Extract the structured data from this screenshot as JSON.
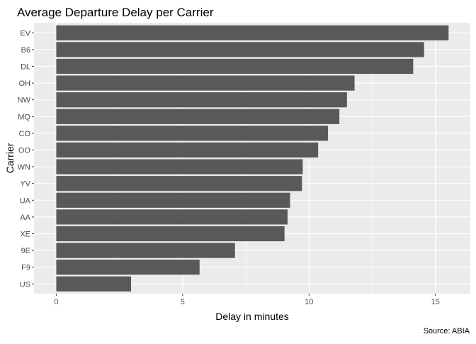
{
  "chart_data": {
    "type": "bar",
    "orientation": "horizontal",
    "title": "Average Departure Delay per Carrier",
    "xlabel": "Delay in minutes",
    "ylabel": "Carrier",
    "caption": "Source: ABIA",
    "categories": [
      "EV",
      "B6",
      "DL",
      "OH",
      "NW",
      "MQ",
      "CO",
      "OO",
      "WN",
      "YV",
      "UA",
      "AA",
      "XE",
      "9E",
      "F9",
      "US"
    ],
    "values": [
      15.52,
      14.55,
      14.12,
      11.8,
      11.5,
      11.2,
      10.75,
      10.36,
      9.75,
      9.72,
      9.25,
      9.15,
      9.03,
      7.07,
      5.67,
      2.96
    ],
    "xlim": [
      -0.88,
      16.38
    ],
    "xticks": [
      0,
      5,
      10,
      15
    ],
    "xtick_labels": [
      "0",
      "5",
      "10",
      "15"
    ],
    "grid": true,
    "background": "#ebebeb",
    "bar_color": "#595959",
    "grid_color": "#ffffff"
  }
}
